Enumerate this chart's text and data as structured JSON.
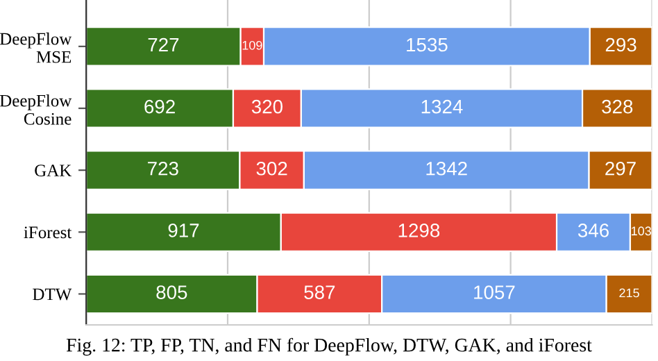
{
  "chart_data": {
    "type": "bar",
    "orientation": "horizontal",
    "stacked": true,
    "data_labels": true,
    "categories": [
      "DeepFlow\nMSE",
      "DeepFlow\nCosine",
      "GAK",
      "iForest",
      "DTW"
    ],
    "series": [
      {
        "color": "#38761d",
        "values": [
          727,
          692,
          723,
          917,
          805
        ]
      },
      {
        "color": "#e8453c",
        "values": [
          109,
          320,
          302,
          1298,
          587
        ]
      },
      {
        "color": "#6d9eeb",
        "values": [
          1535,
          1324,
          1342,
          346,
          1057
        ]
      },
      {
        "color": "#b45f06",
        "values": [
          293,
          328,
          297,
          103,
          215
        ]
      }
    ],
    "xlim": [
      0,
      2664
    ],
    "xticks": [
      {
        "value": 0,
        "label": null
      },
      {
        "value": 666,
        "label": null
      },
      {
        "value": 1332,
        "label": null
      },
      {
        "value": 1998,
        "label": null
      },
      {
        "value": 2664,
        "label": null
      }
    ],
    "grid": "x",
    "tick_labels": "y",
    "annotations": [
      "Fig. 12: TP, FP, TN, and FN for DeepFlow, DTW, GAK, and iForest"
    ]
  }
}
